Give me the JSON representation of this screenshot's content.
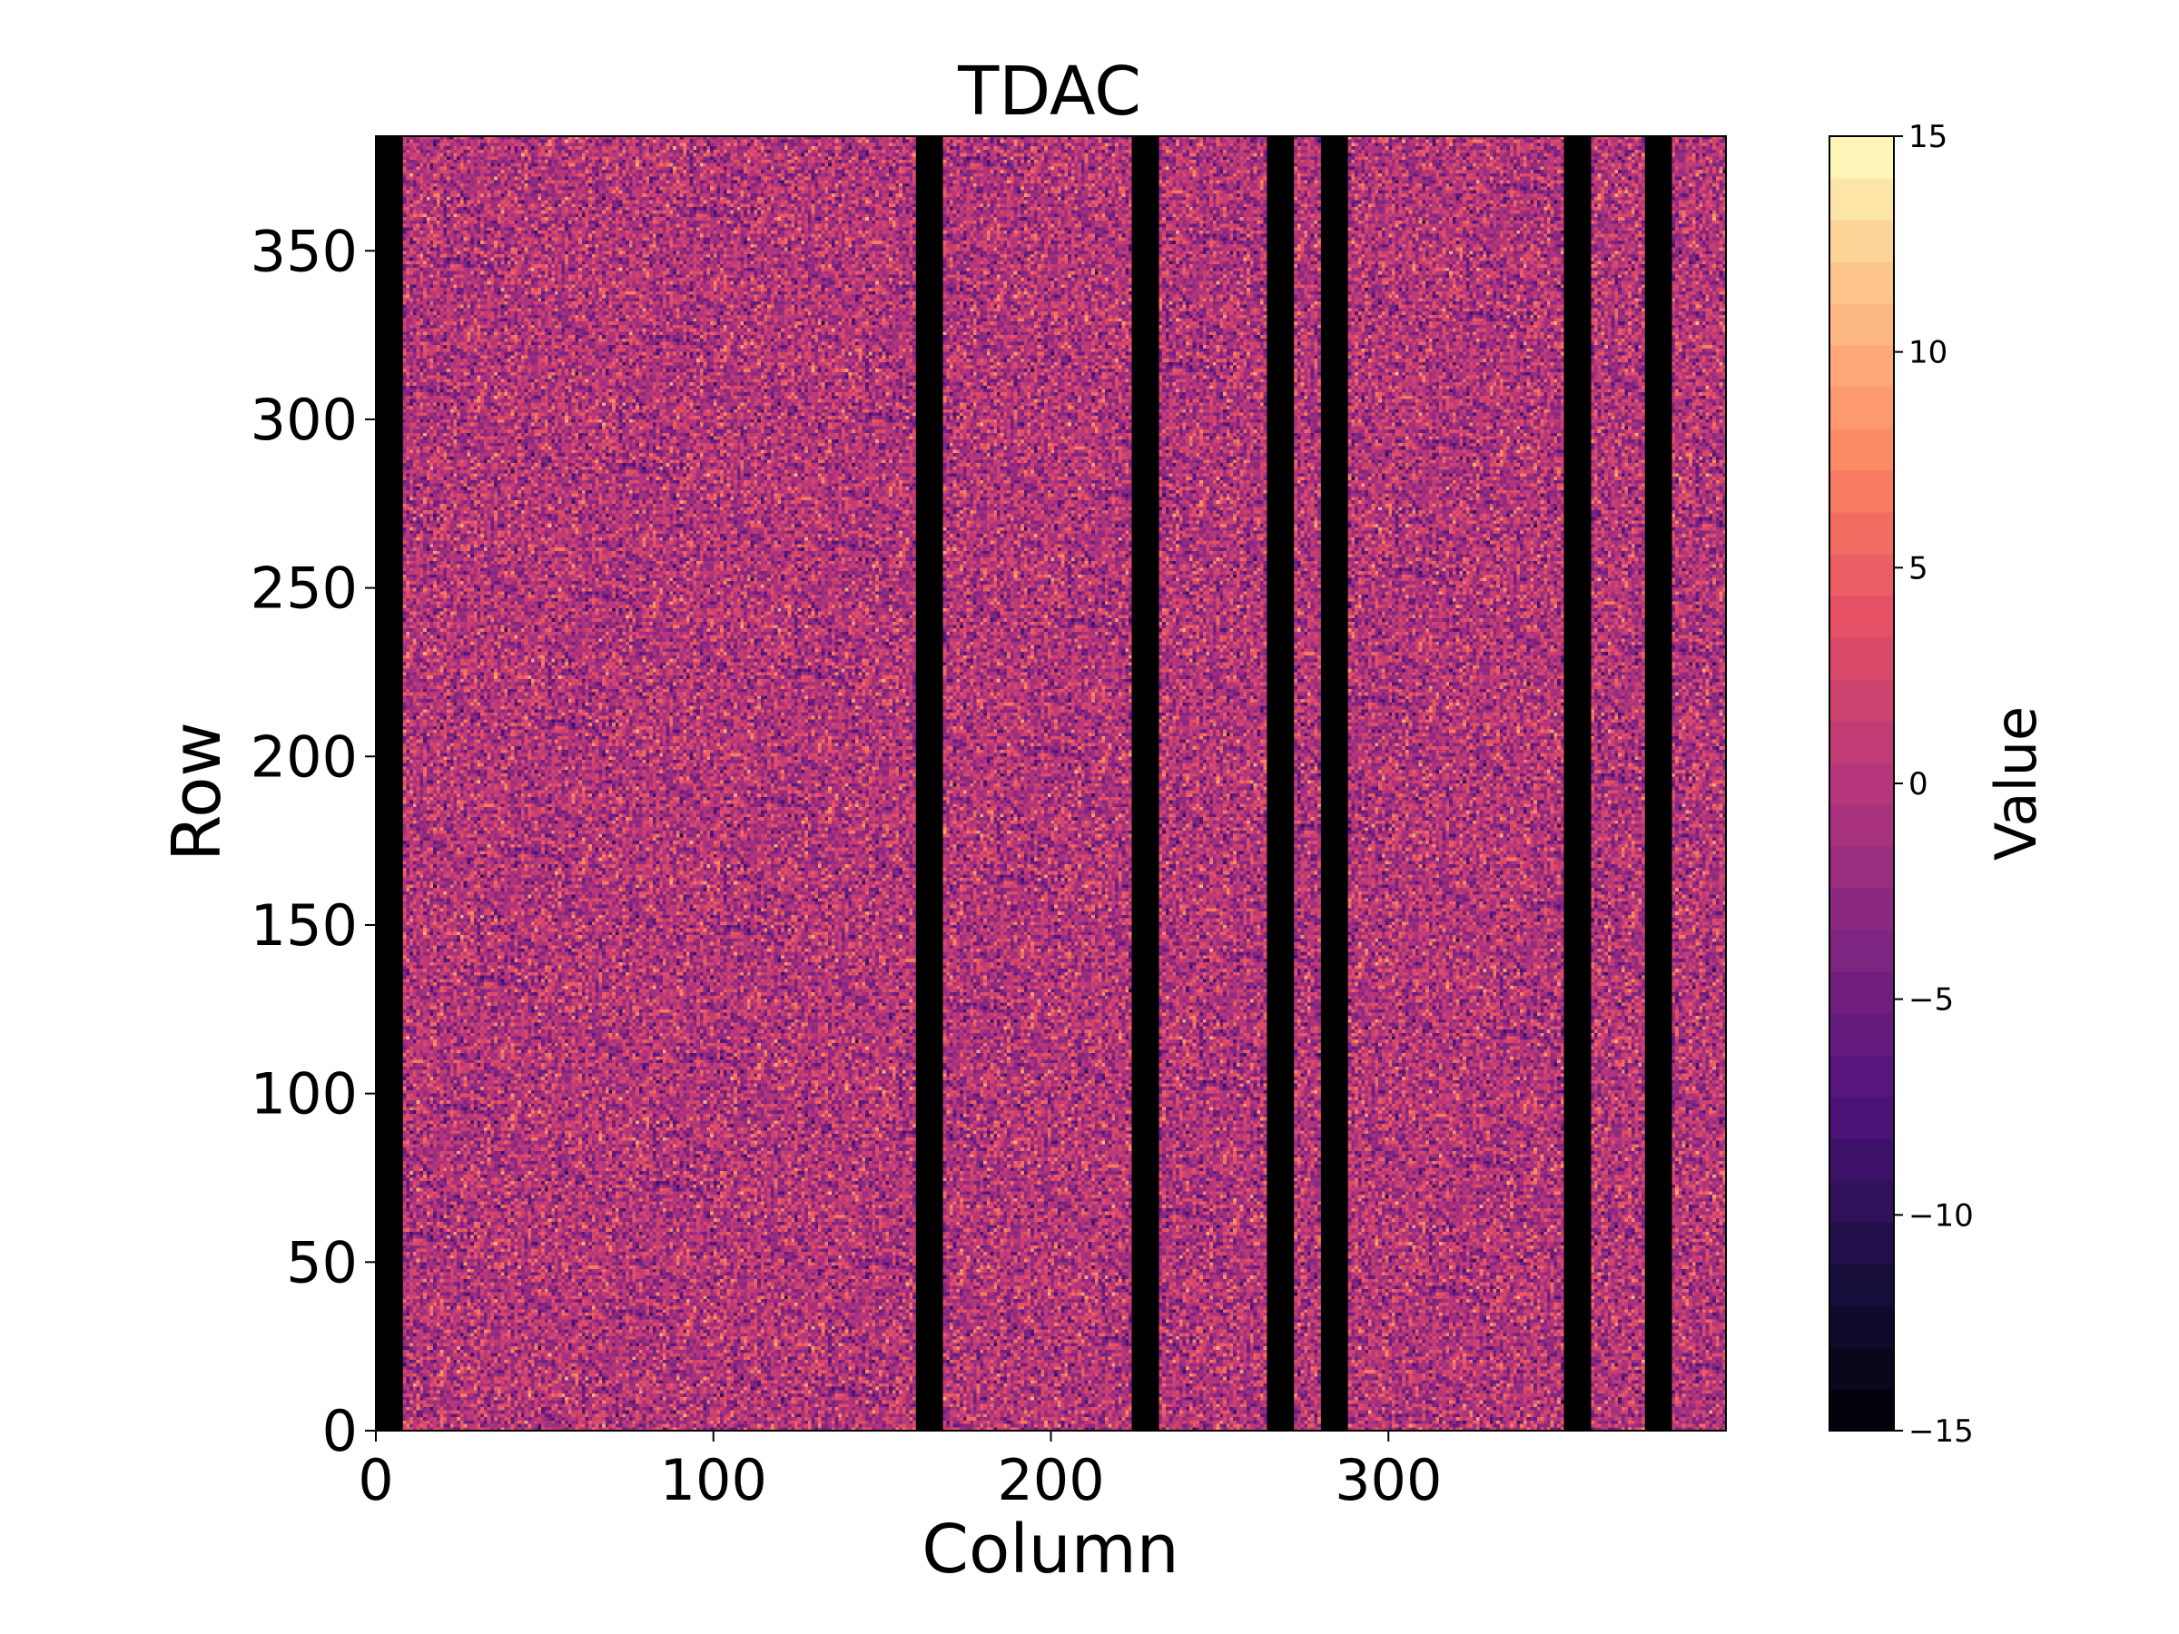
{
  "chart_data": {
    "type": "heatmap",
    "title": "TDAC",
    "xlabel": "Column",
    "ylabel": "Row",
    "colorbar_label": "Value",
    "colormap": "magma",
    "colorbar_levels": 31,
    "xlim": [
      0,
      400
    ],
    "ylim": [
      0,
      384
    ],
    "value_range": [
      -15,
      15
    ],
    "x_ticks": [
      0,
      100,
      200,
      300
    ],
    "y_ticks": [
      0,
      50,
      100,
      150,
      200,
      250,
      300,
      350
    ],
    "colorbar_ticks": [
      -15,
      -10,
      -5,
      0,
      5,
      10,
      15
    ],
    "colorbar_tick_labels": [
      "−15",
      "−10",
      "−5",
      "0",
      "5",
      "10",
      "15"
    ],
    "typical_value": 0,
    "masked_column_ranges": [
      [
        0,
        8
      ],
      [
        160,
        168
      ],
      [
        224,
        232
      ],
      [
        264,
        272
      ],
      [
        280,
        288
      ],
      [
        352,
        360
      ],
      [
        376,
        384
      ]
    ],
    "masked_value": -15,
    "colors": {
      "masked": "#000000",
      "low": "#000004",
      "mid": "#b63679",
      "high": "#fcfdbf"
    }
  }
}
